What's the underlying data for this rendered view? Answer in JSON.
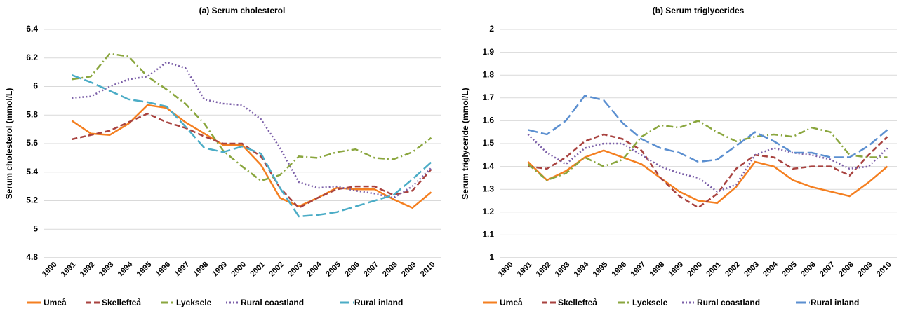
{
  "chart_data": [
    {
      "type": "line",
      "title": "(a) Serum cholesterol",
      "y_label": "Serum cholesterol (mmol/L)",
      "categories": [
        "1990",
        "1991",
        "1992",
        "1993",
        "1994",
        "1995",
        "1996",
        "1997",
        "1998",
        "1999",
        "2000",
        "2001",
        "2002",
        "2003",
        "2004",
        "2005",
        "2006",
        "2007",
        "2008",
        "2009",
        "2010"
      ],
      "ylim": [
        4.8,
        6.4
      ],
      "yticks": [
        4.8,
        5,
        5.2,
        5.4,
        5.6,
        5.8,
        6,
        6.2,
        6.4
      ],
      "grid": true,
      "legend": "bottom",
      "series": [
        {
          "name": "Umeå",
          "color": "#f47f20",
          "dash": "solid",
          "values": [
            null,
            5.76,
            5.67,
            5.66,
            5.74,
            5.87,
            5.85,
            5.75,
            5.67,
            5.59,
            5.59,
            5.45,
            5.22,
            5.16,
            5.22,
            5.29,
            5.28,
            5.28,
            5.21,
            5.15,
            5.26
          ]
        },
        {
          "name": "Skellefteå",
          "color": "#a8423f",
          "dash": "dashed",
          "values": [
            null,
            5.63,
            5.66,
            5.69,
            5.75,
            5.81,
            5.75,
            5.71,
            5.65,
            5.6,
            5.6,
            5.51,
            5.29,
            5.15,
            5.22,
            5.28,
            5.3,
            5.3,
            5.24,
            5.27,
            5.42
          ]
        },
        {
          "name": "Lycksele",
          "color": "#8aa63e",
          "dash": "dashdot",
          "values": [
            null,
            6.05,
            6.07,
            6.23,
            6.21,
            6.07,
            5.98,
            5.88,
            5.74,
            5.55,
            5.44,
            5.34,
            5.38,
            5.51,
            5.5,
            5.54,
            5.56,
            5.5,
            5.49,
            5.54,
            5.64
          ]
        },
        {
          "name": "Rural coastland",
          "color": "#7b5fa8",
          "dash": "dotted",
          "values": [
            null,
            5.92,
            5.93,
            6.0,
            6.05,
            6.07,
            6.17,
            6.13,
            5.91,
            5.88,
            5.87,
            5.77,
            5.57,
            5.33,
            5.29,
            5.3,
            5.27,
            5.25,
            5.22,
            5.3,
            5.43
          ]
        },
        {
          "name": "Rural inland",
          "color": "#4bacc6",
          "dash": "longdash",
          "values": [
            null,
            6.08,
            6.03,
            5.97,
            5.91,
            5.89,
            5.86,
            5.72,
            5.57,
            5.54,
            5.58,
            5.53,
            5.29,
            5.09,
            5.1,
            5.12,
            5.16,
            5.2,
            5.24,
            5.35,
            5.47
          ]
        }
      ]
    },
    {
      "type": "line",
      "title": "(b) Serum triglycerides",
      "y_label": "Serum triglyceride (mmol/L)",
      "categories": [
        "1990",
        "1991",
        "1992",
        "1993",
        "1994",
        "1995",
        "1996",
        "1997",
        "1998",
        "1999",
        "2000",
        "2001",
        "2002",
        "2003",
        "2004",
        "2005",
        "2006",
        "2007",
        "2008",
        "2009",
        "2010"
      ],
      "ylim": [
        1,
        2
      ],
      "yticks": [
        1,
        1.1,
        1.2,
        1.3,
        1.4,
        1.5,
        1.6,
        1.7,
        1.8,
        1.9,
        2
      ],
      "grid": true,
      "legend": "bottom",
      "series": [
        {
          "name": "Umeå",
          "color": "#f47f20",
          "dash": "solid",
          "values": [
            null,
            1.42,
            1.34,
            1.38,
            1.44,
            1.47,
            1.44,
            1.41,
            1.35,
            1.29,
            1.25,
            1.24,
            1.31,
            1.42,
            1.4,
            1.34,
            1.31,
            1.29,
            1.27,
            1.33,
            1.4
          ]
        },
        {
          "name": "Skellefteå",
          "color": "#a8423f",
          "dash": "dashed",
          "values": [
            null,
            1.4,
            1.39,
            1.44,
            1.51,
            1.54,
            1.52,
            1.47,
            1.35,
            1.27,
            1.22,
            1.28,
            1.39,
            1.45,
            1.44,
            1.39,
            1.4,
            1.4,
            1.36,
            1.45,
            1.53
          ]
        },
        {
          "name": "Lycksele",
          "color": "#8aa63e",
          "dash": "dashdot",
          "values": [
            null,
            1.41,
            1.34,
            1.37,
            1.44,
            1.4,
            1.43,
            1.53,
            1.58,
            1.57,
            1.6,
            1.55,
            1.51,
            1.53,
            1.54,
            1.53,
            1.57,
            1.55,
            1.45,
            1.44,
            1.44
          ]
        },
        {
          "name": "Rural coastland",
          "color": "#7b5fa8",
          "dash": "dotted",
          "values": [
            null,
            1.54,
            1.46,
            1.41,
            1.48,
            1.5,
            1.5,
            1.45,
            1.4,
            1.37,
            1.35,
            1.29,
            1.32,
            1.45,
            1.48,
            1.46,
            1.45,
            1.43,
            1.39,
            1.4,
            1.48
          ]
        },
        {
          "name": "Rural inland",
          "color": "#5b8fd0",
          "dash": "longdash",
          "values": [
            null,
            1.56,
            1.54,
            1.6,
            1.71,
            1.69,
            1.59,
            1.52,
            1.48,
            1.46,
            1.42,
            1.43,
            1.49,
            1.55,
            1.51,
            1.46,
            1.46,
            1.44,
            1.44,
            1.49,
            1.56
          ]
        }
      ]
    }
  ]
}
